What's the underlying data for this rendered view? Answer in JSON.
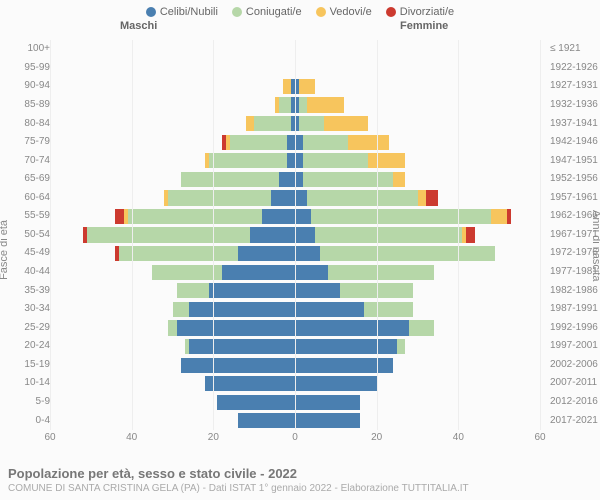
{
  "legend": [
    {
      "label": "Celibi/Nubili",
      "color": "#4a7fb0"
    },
    {
      "label": "Coniugati/e",
      "color": "#b6d7a8"
    },
    {
      "label": "Vedovi/e",
      "color": "#f7c55d"
    },
    {
      "label": "Divorziati/e",
      "color": "#cc3a2f"
    }
  ],
  "header": {
    "male": "Maschi",
    "female": "Femmine"
  },
  "axis": {
    "left_title": "Fasce di età",
    "right_title": "Anni di nascita",
    "x_ticks": [
      60,
      40,
      20,
      0,
      20,
      40,
      60
    ],
    "x_max": 60
  },
  "rows": [
    {
      "age": "100+",
      "birth": "≤ 1921",
      "m": {
        "single": 0,
        "married": 0,
        "widow": 0,
        "div": 0
      },
      "f": {
        "single": 0,
        "married": 0,
        "widow": 0,
        "div": 0
      }
    },
    {
      "age": "95-99",
      "birth": "1922-1926",
      "m": {
        "single": 0,
        "married": 0,
        "widow": 0,
        "div": 0
      },
      "f": {
        "single": 0,
        "married": 0,
        "widow": 0,
        "div": 0
      }
    },
    {
      "age": "90-94",
      "birth": "1927-1931",
      "m": {
        "single": 1,
        "married": 0,
        "widow": 2,
        "div": 0
      },
      "f": {
        "single": 1,
        "married": 0,
        "widow": 4,
        "div": 0
      }
    },
    {
      "age": "85-89",
      "birth": "1932-1936",
      "m": {
        "single": 1,
        "married": 3,
        "widow": 1,
        "div": 0
      },
      "f": {
        "single": 1,
        "married": 2,
        "widow": 9,
        "div": 0
      }
    },
    {
      "age": "80-84",
      "birth": "1937-1941",
      "m": {
        "single": 1,
        "married": 9,
        "widow": 2,
        "div": 0
      },
      "f": {
        "single": 1,
        "married": 6,
        "widow": 11,
        "div": 0
      }
    },
    {
      "age": "75-79",
      "birth": "1942-1946",
      "m": {
        "single": 2,
        "married": 14,
        "widow": 1,
        "div": 1
      },
      "f": {
        "single": 2,
        "married": 11,
        "widow": 10,
        "div": 0
      }
    },
    {
      "age": "70-74",
      "birth": "1947-1951",
      "m": {
        "single": 2,
        "married": 19,
        "widow": 1,
        "div": 0
      },
      "f": {
        "single": 2,
        "married": 16,
        "widow": 9,
        "div": 0
      }
    },
    {
      "age": "65-69",
      "birth": "1952-1956",
      "m": {
        "single": 4,
        "married": 24,
        "widow": 0,
        "div": 0
      },
      "f": {
        "single": 2,
        "married": 22,
        "widow": 3,
        "div": 0
      }
    },
    {
      "age": "60-64",
      "birth": "1957-1961",
      "m": {
        "single": 6,
        "married": 25,
        "widow": 1,
        "div": 0
      },
      "f": {
        "single": 3,
        "married": 27,
        "widow": 2,
        "div": 3
      }
    },
    {
      "age": "55-59",
      "birth": "1962-1966",
      "m": {
        "single": 8,
        "married": 33,
        "widow": 1,
        "div": 2
      },
      "f": {
        "single": 4,
        "married": 44,
        "widow": 4,
        "div": 1
      }
    },
    {
      "age": "50-54",
      "birth": "1967-1971",
      "m": {
        "single": 11,
        "married": 40,
        "widow": 0,
        "div": 1
      },
      "f": {
        "single": 5,
        "married": 36,
        "widow": 1,
        "div": 2
      }
    },
    {
      "age": "45-49",
      "birth": "1972-1976",
      "m": {
        "single": 14,
        "married": 29,
        "widow": 0,
        "div": 1
      },
      "f": {
        "single": 6,
        "married": 43,
        "widow": 0,
        "div": 0
      }
    },
    {
      "age": "40-44",
      "birth": "1977-1981",
      "m": {
        "single": 18,
        "married": 17,
        "widow": 0,
        "div": 0
      },
      "f": {
        "single": 8,
        "married": 26,
        "widow": 0,
        "div": 0
      }
    },
    {
      "age": "35-39",
      "birth": "1982-1986",
      "m": {
        "single": 21,
        "married": 8,
        "widow": 0,
        "div": 0
      },
      "f": {
        "single": 11,
        "married": 18,
        "widow": 0,
        "div": 0
      }
    },
    {
      "age": "30-34",
      "birth": "1987-1991",
      "m": {
        "single": 26,
        "married": 4,
        "widow": 0,
        "div": 0
      },
      "f": {
        "single": 17,
        "married": 12,
        "widow": 0,
        "div": 0
      }
    },
    {
      "age": "25-29",
      "birth": "1992-1996",
      "m": {
        "single": 29,
        "married": 2,
        "widow": 0,
        "div": 0
      },
      "f": {
        "single": 28,
        "married": 6,
        "widow": 0,
        "div": 0
      }
    },
    {
      "age": "20-24",
      "birth": "1997-2001",
      "m": {
        "single": 26,
        "married": 1,
        "widow": 0,
        "div": 0
      },
      "f": {
        "single": 25,
        "married": 2,
        "widow": 0,
        "div": 0
      }
    },
    {
      "age": "15-19",
      "birth": "2002-2006",
      "m": {
        "single": 28,
        "married": 0,
        "widow": 0,
        "div": 0
      },
      "f": {
        "single": 24,
        "married": 0,
        "widow": 0,
        "div": 0
      }
    },
    {
      "age": "10-14",
      "birth": "2007-2011",
      "m": {
        "single": 22,
        "married": 0,
        "widow": 0,
        "div": 0
      },
      "f": {
        "single": 20,
        "married": 0,
        "widow": 0,
        "div": 0
      }
    },
    {
      "age": "5-9",
      "birth": "2012-2016",
      "m": {
        "single": 19,
        "married": 0,
        "widow": 0,
        "div": 0
      },
      "f": {
        "single": 16,
        "married": 0,
        "widow": 0,
        "div": 0
      }
    },
    {
      "age": "0-4",
      "birth": "2017-2021",
      "m": {
        "single": 14,
        "married": 0,
        "widow": 0,
        "div": 0
      },
      "f": {
        "single": 16,
        "married": 0,
        "widow": 0,
        "div": 0
      }
    }
  ],
  "colors": {
    "single": "#4a7fb0",
    "married": "#b6d7a8",
    "widow": "#f7c55d",
    "div": "#cc3a2f",
    "grid": "#eeeeee",
    "center": "#bbbbbb",
    "bg": "#fbfbfb"
  },
  "footer": {
    "title": "Popolazione per età, sesso e stato civile - 2022",
    "subtitle": "COMUNE DI SANTA CRISTINA GELA (PA) - Dati ISTAT 1° gennaio 2022 - Elaborazione TUTTITALIA.IT"
  }
}
